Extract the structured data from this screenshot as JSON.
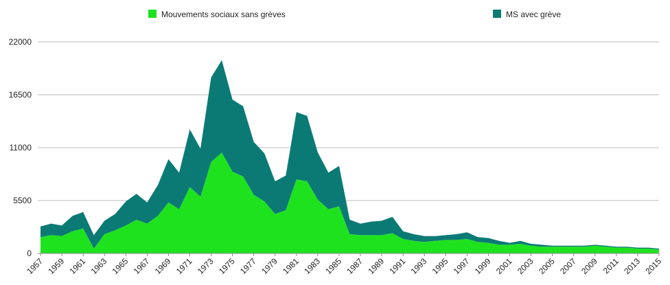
{
  "chart_data": {
    "type": "stacked_area",
    "x": [
      1957,
      1958,
      1959,
      1960,
      1961,
      1962,
      1963,
      1964,
      1965,
      1966,
      1967,
      1968,
      1969,
      1970,
      1971,
      1972,
      1973,
      1974,
      1975,
      1976,
      1977,
      1978,
      1979,
      1980,
      1981,
      1982,
      1983,
      1984,
      1985,
      1986,
      1987,
      1988,
      1989,
      1990,
      1991,
      1992,
      1993,
      1994,
      1995,
      1996,
      1997,
      1998,
      1999,
      2000,
      2001,
      2002,
      2003,
      2004,
      2005,
      2006,
      2007,
      2008,
      2009,
      2010,
      2011,
      2012,
      2013,
      2014,
      2015
    ],
    "series": [
      {
        "name": "Mouvements sociaux sans grèves",
        "color": "#1fe21f",
        "values": [
          1700,
          1900,
          1800,
          2300,
          2600,
          500,
          2000,
          2400,
          2900,
          3500,
          3100,
          3900,
          5300,
          4600,
          6900,
          5900,
          9500,
          10500,
          8500,
          8000,
          6100,
          5400,
          4100,
          4500,
          7700,
          7500,
          5600,
          4600,
          4900,
          2000,
          1900,
          1900,
          1900,
          2100,
          1500,
          1300,
          1200,
          1300,
          1400,
          1400,
          1500,
          1200,
          1100,
          900,
          900,
          1000,
          800,
          700,
          700,
          700,
          700,
          700,
          800,
          700,
          600,
          600,
          500,
          500,
          400
        ]
      },
      {
        "name": "MS avec grève",
        "color": "#0b7a75",
        "values": [
          1100,
          1200,
          1100,
          1600,
          1700,
          1400,
          1400,
          1700,
          2500,
          2700,
          2200,
          3200,
          4500,
          3800,
          6000,
          5000,
          8800,
          9600,
          7500,
          7300,
          5500,
          5000,
          3400,
          3600,
          7000,
          6800,
          4900,
          3800,
          4200,
          1500,
          1200,
          1400,
          1500,
          1700,
          800,
          700,
          600,
          500,
          500,
          600,
          700,
          500,
          500,
          400,
          200,
          300,
          200,
          200,
          100,
          100,
          100,
          100,
          100,
          100,
          100,
          100,
          100,
          100,
          100
        ]
      }
    ],
    "xlim": [
      1957,
      2015
    ],
    "xticks": [
      1957,
      1959,
      1961,
      1963,
      1965,
      1967,
      1969,
      1971,
      1973,
      1975,
      1977,
      1979,
      1981,
      1983,
      1985,
      1987,
      1989,
      1991,
      1993,
      1995,
      1997,
      1999,
      2001,
      2003,
      2005,
      2007,
      2009,
      2011,
      2013,
      2015
    ],
    "ylim": [
      0,
      22000
    ],
    "yticks": [
      0,
      5500,
      11000,
      16500,
      22000
    ],
    "grid": true
  }
}
